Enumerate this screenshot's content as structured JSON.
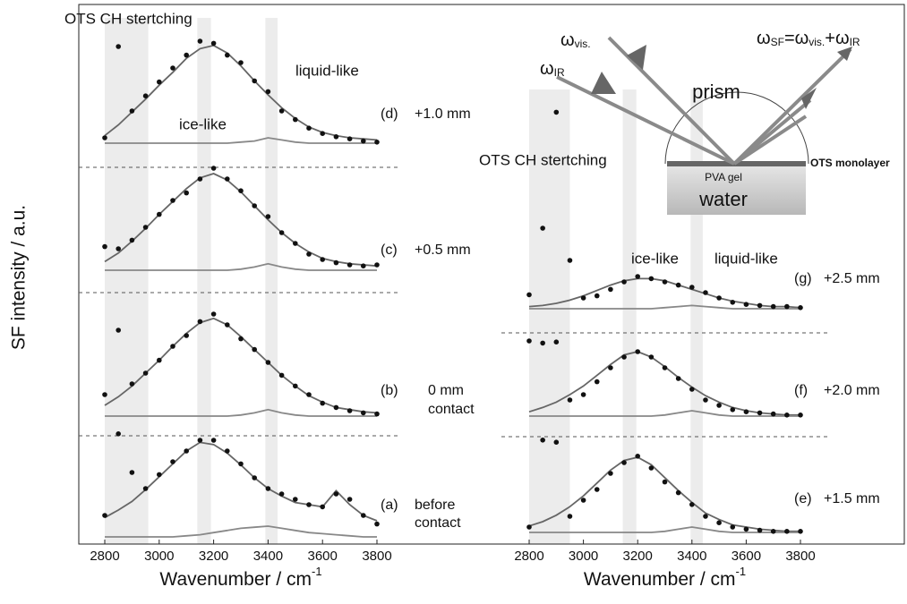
{
  "ylabel": "SF intensity / a.u.",
  "inset": {
    "omega_vis": [
      "ω",
      "vis."
    ],
    "omega_ir": [
      "ω",
      "IR"
    ],
    "omega_sf": [
      "ω",
      "SF",
      "=ω",
      "vis.",
      "+ω",
      "IR"
    ],
    "prism": "prism",
    "gel": "PVA gel",
    "water": "water",
    "monolayer": "OTS monolayer"
  },
  "chart_data": [
    {
      "type": "line",
      "annotations": [
        "(d)",
        "+1.0 mm"
      ],
      "region_labels": [
        "OTS CH stertching",
        "ice-like",
        "liquid-like"
      ],
      "bands": [
        [
          2800,
          2960
        ],
        [
          3140,
          3190
        ],
        [
          3390,
          3435
        ]
      ],
      "xlim": [
        2800,
        3800
      ],
      "ylim": [
        0,
        1
      ],
      "x": [
        2800,
        2850,
        2900,
        2950,
        3000,
        3050,
        3100,
        3150,
        3200,
        3250,
        3300,
        3350,
        3400,
        3450,
        3500,
        3550,
        3600,
        3650,
        3700,
        3750,
        3800
      ],
      "series": [
        {
          "type": "scatter",
          "color": "#111111",
          "values": [
            0.05,
            0.9,
            0.3,
            0.44,
            0.57,
            0.7,
            0.82,
            0.95,
            0.93,
            0.82,
            0.75,
            0.58,
            0.48,
            0.3,
            0.22,
            0.14,
            0.09,
            0.06,
            0.04,
            0.02,
            0.01
          ]
        },
        {
          "type": "line",
          "color": "#666666",
          "values": [
            0.07,
            0.17,
            0.29,
            0.41,
            0.54,
            0.66,
            0.79,
            0.88,
            0.91,
            0.84,
            0.72,
            0.58,
            0.45,
            0.33,
            0.23,
            0.15,
            0.1,
            0.07,
            0.05,
            0.04,
            0.03
          ]
        },
        {
          "type": "line",
          "color": "#888888",
          "values": [
            0,
            0,
            0,
            0,
            0,
            0,
            0,
            0,
            0,
            0,
            0.01,
            0.02,
            0.05,
            0.03,
            0.01,
            0,
            0,
            0,
            0,
            0,
            0
          ]
        }
      ]
    },
    {
      "type": "line",
      "annotations": [
        "(c)",
        "+0.5 mm"
      ],
      "bands": [
        [
          2800,
          2960
        ],
        [
          3140,
          3190
        ],
        [
          3390,
          3435
        ]
      ],
      "xlim": [
        2800,
        3800
      ],
      "ylim": [
        0,
        1
      ],
      "x": [
        2800,
        2850,
        2900,
        2950,
        3000,
        3050,
        3100,
        3150,
        3200,
        3250,
        3300,
        3350,
        3400,
        3450,
        3500,
        3550,
        3600,
        3650,
        3700,
        3750,
        3800
      ],
      "series": [
        {
          "type": "scatter",
          "color": "#111111",
          "values": [
            0.22,
            0.2,
            0.28,
            0.4,
            0.52,
            0.65,
            0.72,
            0.85,
            0.95,
            0.85,
            0.74,
            0.6,
            0.5,
            0.35,
            0.25,
            0.15,
            0.1,
            0.07,
            0.05,
            0.04,
            0.05
          ]
        },
        {
          "type": "line",
          "color": "#666666",
          "values": [
            0.08,
            0.16,
            0.27,
            0.39,
            0.52,
            0.64,
            0.76,
            0.86,
            0.9,
            0.84,
            0.73,
            0.6,
            0.47,
            0.35,
            0.25,
            0.17,
            0.11,
            0.08,
            0.06,
            0.05,
            0.04
          ]
        },
        {
          "type": "line",
          "color": "#888888",
          "values": [
            0,
            0,
            0,
            0,
            0,
            0,
            0,
            0,
            0,
            0,
            0.01,
            0.03,
            0.06,
            0.03,
            0.01,
            0,
            0,
            0,
            0,
            0,
            0
          ]
        }
      ]
    },
    {
      "type": "line",
      "annotations": [
        "(b)",
        "0 mm",
        "contact"
      ],
      "bands": [
        [
          2800,
          2960
        ],
        [
          3140,
          3190
        ],
        [
          3390,
          3435
        ]
      ],
      "xlim": [
        2800,
        3800
      ],
      "ylim": [
        0,
        1
      ],
      "x": [
        2800,
        2850,
        2900,
        2950,
        3000,
        3050,
        3100,
        3150,
        3200,
        3250,
        3300,
        3350,
        3400,
        3450,
        3500,
        3550,
        3600,
        3650,
        3700,
        3750,
        3800
      ],
      "series": [
        {
          "type": "scatter",
          "color": "#111111",
          "values": [
            0.2,
            0.8,
            0.3,
            0.4,
            0.52,
            0.65,
            0.75,
            0.88,
            0.95,
            0.85,
            0.72,
            0.62,
            0.5,
            0.38,
            0.28,
            0.2,
            0.12,
            0.08,
            0.05,
            0.03,
            0.02
          ]
        },
        {
          "type": "line",
          "color": "#666666",
          "values": [
            0.1,
            0.18,
            0.28,
            0.4,
            0.52,
            0.65,
            0.77,
            0.87,
            0.91,
            0.85,
            0.74,
            0.62,
            0.5,
            0.38,
            0.28,
            0.19,
            0.13,
            0.08,
            0.06,
            0.04,
            0.03
          ]
        },
        {
          "type": "line",
          "color": "#888888",
          "values": [
            0,
            0,
            0,
            0,
            0,
            0,
            0,
            0,
            0,
            0,
            0.01,
            0.03,
            0.06,
            0.03,
            0.01,
            0,
            0,
            0,
            0,
            0,
            0
          ]
        }
      ]
    },
    {
      "type": "line",
      "annotations": [
        "(a)",
        "before",
        "contact"
      ],
      "bands": [
        [
          2800,
          2960
        ],
        [
          3140,
          3190
        ],
        [
          3390,
          3435
        ]
      ],
      "xlim": [
        2800,
        3800
      ],
      "ylim": [
        0,
        1
      ],
      "xticks": [
        2800,
        3000,
        3200,
        3400,
        3600,
        3800
      ],
      "xlabel": "Wavenumber / cm",
      "xlabel_sup": "-1",
      "x": [
        2800,
        2850,
        2900,
        2950,
        3000,
        3050,
        3100,
        3150,
        3200,
        3250,
        3300,
        3350,
        3400,
        3450,
        3500,
        3550,
        3600,
        3650,
        3700,
        3750,
        3800
      ],
      "series": [
        {
          "type": "scatter",
          "color": "#111111",
          "values": [
            0.2,
            0.96,
            0.6,
            0.45,
            0.58,
            0.7,
            0.8,
            0.9,
            0.9,
            0.8,
            0.68,
            0.55,
            0.45,
            0.4,
            0.35,
            0.3,
            0.28,
            0.4,
            0.35,
            0.2,
            0.12
          ]
        },
        {
          "type": "line",
          "color": "#666666",
          "values": [
            0.18,
            0.25,
            0.33,
            0.44,
            0.56,
            0.68,
            0.8,
            0.88,
            0.86,
            0.78,
            0.67,
            0.55,
            0.45,
            0.38,
            0.32,
            0.3,
            0.28,
            0.43,
            0.3,
            0.2,
            0.15
          ]
        },
        {
          "type": "line",
          "color": "#888888",
          "values": [
            0,
            0,
            0,
            0,
            0,
            0,
            0.01,
            0.02,
            0.04,
            0.06,
            0.08,
            0.09,
            0.1,
            0.08,
            0.06,
            0.04,
            0.03,
            0.02,
            0.01,
            0,
            0
          ]
        }
      ]
    },
    {
      "type": "line",
      "annotations": [
        "(g)",
        "+2.5 mm"
      ],
      "region_labels": [
        "OTS CH stertching",
        "ice-like",
        "liquid-like"
      ],
      "bands": [
        [
          2800,
          2950
        ],
        [
          3145,
          3195
        ],
        [
          3395,
          3440
        ]
      ],
      "xlim": [
        2800,
        3800
      ],
      "ylim": [
        0,
        2
      ],
      "x": [
        2800,
        2850,
        2900,
        2950,
        3000,
        3050,
        3100,
        3150,
        3200,
        3250,
        3300,
        3350,
        3400,
        3450,
        3500,
        3550,
        3600,
        3650,
        3700,
        3750,
        3800
      ],
      "series": [
        {
          "type": "scatter",
          "color": "#111111",
          "values": [
            0.13,
            0.75,
            1.83,
            0.45,
            0.1,
            0.12,
            0.18,
            0.25,
            0.3,
            0.28,
            0.25,
            0.22,
            0.2,
            0.15,
            0.1,
            0.06,
            0.04,
            0.03,
            0.02,
            0.02,
            0.01
          ]
        },
        {
          "type": "line",
          "color": "#666666",
          "values": [
            0.02,
            0.03,
            0.05,
            0.08,
            0.12,
            0.17,
            0.22,
            0.26,
            0.28,
            0.28,
            0.26,
            0.22,
            0.18,
            0.14,
            0.1,
            0.07,
            0.05,
            0.03,
            0.02,
            0.02,
            0.01
          ]
        },
        {
          "type": "line",
          "color": "#888888",
          "values": [
            0,
            0,
            0,
            0,
            0,
            0,
            0,
            0,
            0,
            0,
            0.01,
            0.02,
            0.03,
            0.02,
            0.01,
            0,
            0,
            0,
            0,
            0,
            0
          ]
        }
      ]
    },
    {
      "type": "line",
      "annotations": [
        "(f)",
        "+2.0 mm"
      ],
      "bands": [
        [
          2800,
          2950
        ],
        [
          3145,
          3195
        ],
        [
          3395,
          3440
        ]
      ],
      "xlim": [
        2800,
        3800
      ],
      "ylim": [
        0,
        0.8
      ],
      "x": [
        2800,
        2850,
        2900,
        2950,
        3000,
        3050,
        3100,
        3150,
        3200,
        3250,
        3300,
        3350,
        3400,
        3450,
        3500,
        3550,
        3600,
        3650,
        3700,
        3750,
        3800
      ],
      "series": [
        {
          "type": "scatter",
          "color": "#111111",
          "values": [
            0.7,
            0.68,
            0.69,
            0.15,
            0.2,
            0.32,
            0.45,
            0.55,
            0.6,
            0.55,
            0.45,
            0.35,
            0.25,
            0.15,
            0.1,
            0.06,
            0.04,
            0.03,
            0.02,
            0.01,
            0.01
          ]
        },
        {
          "type": "line",
          "color": "#666666",
          "values": [
            0.04,
            0.08,
            0.13,
            0.2,
            0.28,
            0.38,
            0.48,
            0.57,
            0.6,
            0.55,
            0.46,
            0.36,
            0.27,
            0.19,
            0.13,
            0.08,
            0.05,
            0.03,
            0.02,
            0.01,
            0.01
          ]
        },
        {
          "type": "line",
          "color": "#888888",
          "values": [
            0,
            0,
            0,
            0,
            0,
            0,
            0,
            0,
            0,
            0,
            0.01,
            0.03,
            0.05,
            0.03,
            0.01,
            0,
            0,
            0,
            0,
            0,
            0
          ]
        }
      ]
    },
    {
      "type": "line",
      "annotations": [
        "(e)",
        "+1.5 mm"
      ],
      "bands": [
        [
          2800,
          2950
        ],
        [
          3145,
          3195
        ],
        [
          3395,
          3440
        ]
      ],
      "xlim": [
        2800,
        3800
      ],
      "ylim": [
        0,
        0.9
      ],
      "xticks": [
        2800,
        3000,
        3200,
        3400,
        3600,
        3800
      ],
      "xlabel": "Wavenumber / cm",
      "xlabel_sup": "-1",
      "x": [
        2800,
        2850,
        2900,
        2950,
        3000,
        3050,
        3100,
        3150,
        3200,
        3250,
        3300,
        3350,
        3400,
        3450,
        3500,
        3550,
        3600,
        3650,
        3700,
        3750,
        3800
      ],
      "series": [
        {
          "type": "scatter",
          "color": "#111111",
          "values": [
            0.05,
            0.86,
            0.84,
            0.15,
            0.3,
            0.4,
            0.55,
            0.65,
            0.71,
            0.6,
            0.47,
            0.37,
            0.26,
            0.15,
            0.09,
            0.05,
            0.03,
            0.02,
            0.01,
            0.01,
            0.01
          ]
        },
        {
          "type": "line",
          "color": "#666666",
          "values": [
            0.06,
            0.1,
            0.16,
            0.24,
            0.34,
            0.46,
            0.58,
            0.67,
            0.7,
            0.63,
            0.51,
            0.39,
            0.28,
            0.18,
            0.12,
            0.07,
            0.05,
            0.03,
            0.02,
            0.01,
            0.01
          ]
        },
        {
          "type": "line",
          "color": "#888888",
          "values": [
            0,
            0,
            0,
            0,
            0,
            0,
            0,
            0,
            0,
            0,
            0.01,
            0.03,
            0.05,
            0.03,
            0.01,
            0,
            0,
            0,
            0,
            0,
            0
          ]
        }
      ]
    }
  ]
}
